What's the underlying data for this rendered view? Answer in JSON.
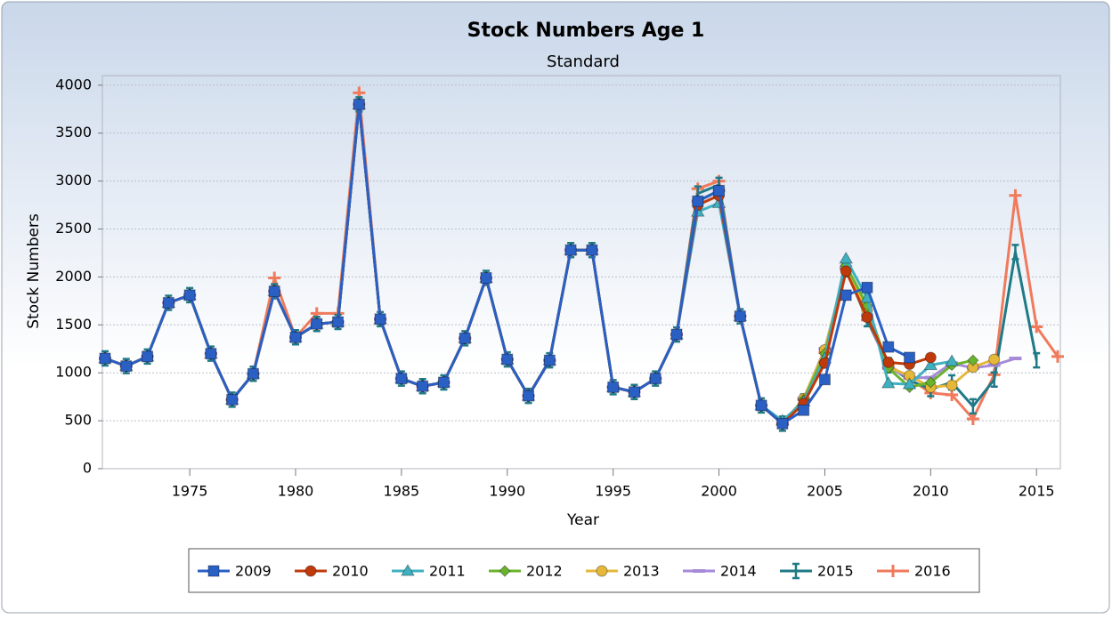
{
  "chart_data": {
    "type": "line",
    "title": "Stock Numbers Age 1",
    "subtitle": "Standard",
    "x_label": "Year",
    "y_label": "Stock Numbers",
    "x": [
      1971,
      1972,
      1973,
      1974,
      1975,
      1976,
      1977,
      1978,
      1979,
      1980,
      1981,
      1982,
      1983,
      1984,
      1985,
      1986,
      1987,
      1988,
      1989,
      1990,
      1991,
      1992,
      1993,
      1994,
      1995,
      1996,
      1997,
      1998,
      1999,
      2000,
      2001,
      2002,
      2003,
      2004,
      2005,
      2006,
      2007,
      2008,
      2009,
      2010,
      2011,
      2012,
      2013,
      2014,
      2015,
      2016
    ],
    "xlim": [
      1971,
      2016
    ],
    "xticks": [
      1975,
      1980,
      1985,
      1990,
      1995,
      2000,
      2005,
      2010,
      2015
    ],
    "ylim": [
      0,
      4100
    ],
    "yticks": [
      0,
      500,
      1000,
      1500,
      2000,
      2500,
      3000,
      3500,
      4000
    ],
    "grid": true,
    "legend": "bottom",
    "series": [
      {
        "name": "2009",
        "color": "#2a5fc4",
        "marker": "square",
        "values": [
          1150,
          1070,
          1170,
          1730,
          1810,
          1200,
          720,
          990,
          1850,
          1370,
          1510,
          1530,
          3800,
          1560,
          940,
          860,
          900,
          1360,
          1990,
          1140,
          760,
          1130,
          2280,
          2280,
          850,
          800,
          940,
          1400,
          2790,
          2900,
          1590,
          660,
          470,
          610,
          930,
          1810,
          1890,
          1270,
          1160,
          null,
          null,
          null,
          null,
          null,
          null,
          null
        ]
      },
      {
        "name": "2010",
        "color": "#c0390b",
        "marker": "circle",
        "values": [
          1150,
          1070,
          1170,
          1730,
          1810,
          1200,
          720,
          990,
          1850,
          1370,
          1510,
          1530,
          3800,
          1560,
          940,
          860,
          900,
          1360,
          1990,
          1140,
          760,
          1130,
          2280,
          2280,
          850,
          800,
          940,
          1400,
          2750,
          2850,
          1590,
          660,
          470,
          680,
          1100,
          2060,
          1580,
          1110,
          1090,
          1160,
          null,
          null,
          null,
          null,
          null,
          null
        ]
      },
      {
        "name": "2011",
        "color": "#3fb0c0",
        "marker": "triangle",
        "values": [
          1150,
          1070,
          1170,
          1730,
          1810,
          1200,
          720,
          990,
          1850,
          1370,
          1510,
          1530,
          3800,
          1560,
          940,
          860,
          900,
          1360,
          1990,
          1140,
          760,
          1130,
          2280,
          2280,
          850,
          800,
          940,
          1400,
          2680,
          2770,
          1590,
          660,
          500,
          700,
          1150,
          2190,
          1780,
          890,
          880,
          1080,
          1120,
          null,
          null,
          null,
          null,
          null
        ]
      },
      {
        "name": "2012",
        "color": "#6ab42d",
        "marker": "diamond",
        "values": [
          1150,
          1070,
          1170,
          1730,
          1810,
          1200,
          720,
          990,
          1850,
          1370,
          1510,
          1530,
          3800,
          1560,
          940,
          860,
          900,
          1360,
          1990,
          1140,
          760,
          1130,
          2280,
          2280,
          850,
          800,
          940,
          1400,
          2790,
          2900,
          1590,
          660,
          470,
          720,
          1200,
          2120,
          1700,
          1050,
          850,
          900,
          1080,
          1130,
          null,
          null,
          null,
          null
        ]
      },
      {
        "name": "2013",
        "color": "#e6b83a",
        "marker": "circle",
        "values": [
          1150,
          1070,
          1170,
          1730,
          1810,
          1200,
          720,
          990,
          1850,
          1370,
          1510,
          1530,
          3800,
          1560,
          940,
          860,
          900,
          1360,
          1990,
          1140,
          760,
          1130,
          2280,
          2280,
          850,
          800,
          940,
          1400,
          2790,
          2900,
          1590,
          660,
          470,
          730,
          1240,
          2100,
          1650,
          1060,
          970,
          850,
          870,
          1060,
          1140,
          null,
          null,
          null
        ]
      },
      {
        "name": "2014",
        "color": "#a58ad8",
        "marker": "dash",
        "values": [
          1150,
          1070,
          1170,
          1730,
          1810,
          1200,
          720,
          990,
          1850,
          1370,
          1510,
          1530,
          3800,
          1560,
          940,
          860,
          900,
          1360,
          1990,
          1140,
          760,
          1130,
          2280,
          2280,
          850,
          800,
          940,
          1400,
          2790,
          2900,
          1590,
          660,
          470,
          730,
          1250,
          2100,
          1600,
          1050,
          950,
          950,
          1100,
          1050,
          1080,
          1150,
          null,
          null
        ]
      },
      {
        "name": "2015",
        "color": "#1f7a86",
        "marker": "tick",
        "values": [
          1150,
          1070,
          1170,
          1730,
          1810,
          1200,
          720,
          990,
          1850,
          1370,
          1510,
          1530,
          3800,
          1560,
          940,
          860,
          900,
          1360,
          1990,
          1140,
          760,
          1130,
          2280,
          2280,
          850,
          800,
          940,
          1400,
          2870,
          2960,
          1590,
          660,
          470,
          700,
          1200,
          2080,
          1560,
          1080,
          920,
          830,
          900,
          650,
          930,
          2260,
          1130,
          null
        ]
      },
      {
        "name": "2016",
        "color": "#f07a5c",
        "marker": "plus",
        "values": [
          1150,
          1070,
          1170,
          1730,
          1810,
          1200,
          720,
          990,
          1990,
          1370,
          1620,
          1620,
          3920,
          1560,
          940,
          860,
          900,
          1360,
          1990,
          1140,
          760,
          1130,
          2280,
          2280,
          850,
          800,
          940,
          1400,
          2920,
          3000,
          1590,
          660,
          470,
          720,
          1210,
          2080,
          1550,
          1080,
          940,
          790,
          770,
          520,
          980,
          2850,
          1480,
          1170
        ]
      }
    ]
  }
}
